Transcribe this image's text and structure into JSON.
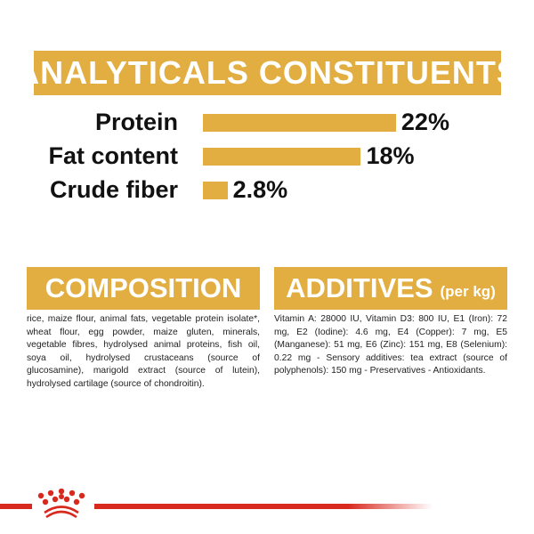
{
  "analytical": {
    "title": "ANALYTICALS CONSTITUENTS",
    "items": [
      {
        "label": "Protein",
        "value": "22%",
        "percent": 22
      },
      {
        "label": "Fat content",
        "value": "18%",
        "percent": 18
      },
      {
        "label": "Crude fiber",
        "value": "2.8%",
        "percent": 2.8
      }
    ]
  },
  "composition": {
    "title": "COMPOSITION",
    "text": "rice, maize flour, animal fats, vegetable protein isolate*, wheat flour, egg powder, maize gluten, minerals, vegetable fibres, hydrolysed animal proteins, fish oil, soya oil, hydrolysed crustaceans (source of glucosamine), marigold extract (source of lutein), hydrolysed cartilage (source of chondroitin)."
  },
  "additives": {
    "title": "ADDITIVES",
    "unit": "(per kg)",
    "text": "Vitamin A: 28000 IU, Vitamin D3: 800 IU, E1 (Iron): 72 mg, E2 (Iodine): 4.6 mg, E4 (Copper): 7 mg, E5 (Manganese): 51 mg, E6 (Zinc): 151 mg, E8 (Selenium): 0.22 mg - Sensory additives: tea extract (source of polyphenols): 150 mg - Preservatives - Antioxidants."
  },
  "colors": {
    "accent": "#e2ae41",
    "brand_red": "#d8291f"
  },
  "logo": {
    "icon": "royal-canin-crown-icon"
  }
}
